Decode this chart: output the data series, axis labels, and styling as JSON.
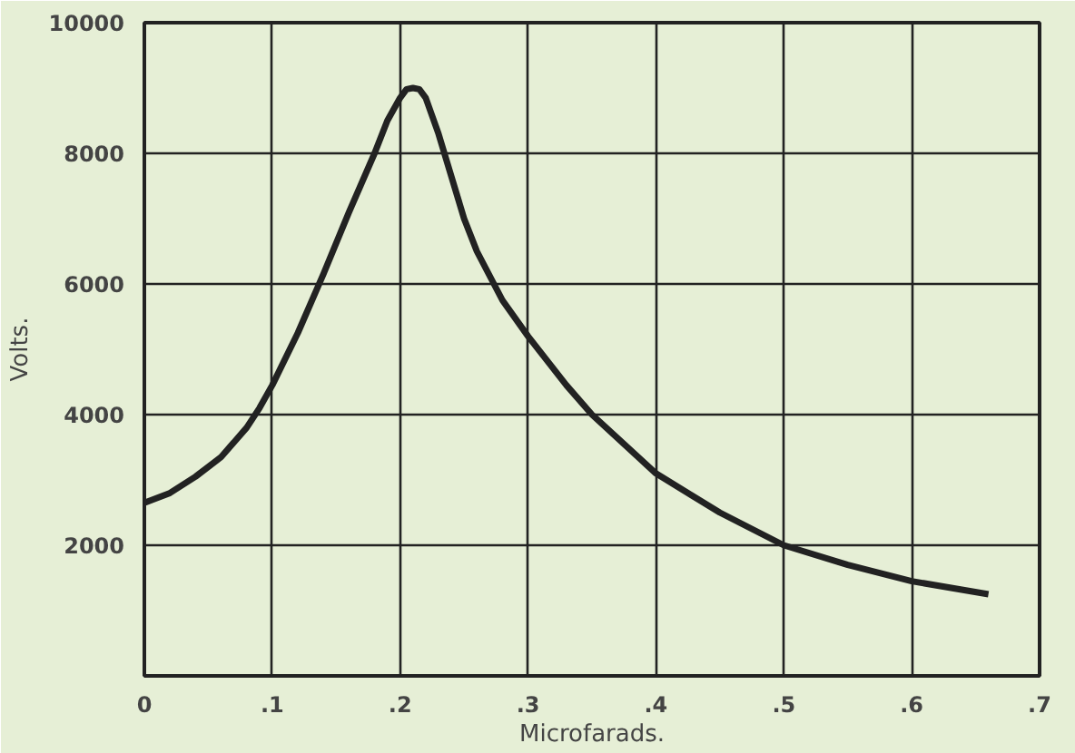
{
  "chart_data": {
    "type": "line",
    "xlabel": "Microfarads.",
    "ylabel": "Volts.",
    "xlim": [
      0,
      0.7
    ],
    "ylim": [
      0,
      10000
    ],
    "xticks": [
      0,
      {
        "value": 0.1,
        "label": ".1"
      },
      {
        "value": 0.2,
        "label": ".2"
      },
      {
        "value": 0.3,
        "label": ".3"
      },
      {
        "value": 0.4,
        "label": ".4"
      },
      {
        "value": 0.5,
        "label": ".5"
      },
      {
        "value": 0.6,
        "label": ".6"
      },
      {
        "value": 0.7,
        "label": ".7"
      }
    ],
    "yticks": [
      {
        "value": 0,
        "label": null
      },
      2000,
      4000,
      6000,
      8000,
      10000
    ],
    "grid": true,
    "marker": "none",
    "line_style": "solid",
    "series": [
      {
        "color": "#222222",
        "x": [
          0,
          0.02,
          0.04,
          0.06,
          0.08,
          0.09,
          0.1,
          0.12,
          0.14,
          0.16,
          0.18,
          0.19,
          0.2,
          0.205,
          0.21,
          0.215,
          0.22,
          0.23,
          0.24,
          0.25,
          0.26,
          0.28,
          0.3,
          0.33,
          0.35,
          0.4,
          0.45,
          0.5,
          0.55,
          0.6,
          0.66
        ],
        "values": [
          2650,
          2800,
          3050,
          3350,
          3800,
          4100,
          4450,
          5250,
          6150,
          7100,
          8000,
          8500,
          8850,
          8980,
          9000,
          8980,
          8850,
          8300,
          7650,
          7000,
          6500,
          5750,
          5200,
          4450,
          4000,
          3100,
          2500,
          2000,
          1700,
          1450,
          1250
        ]
      }
    ]
  }
}
